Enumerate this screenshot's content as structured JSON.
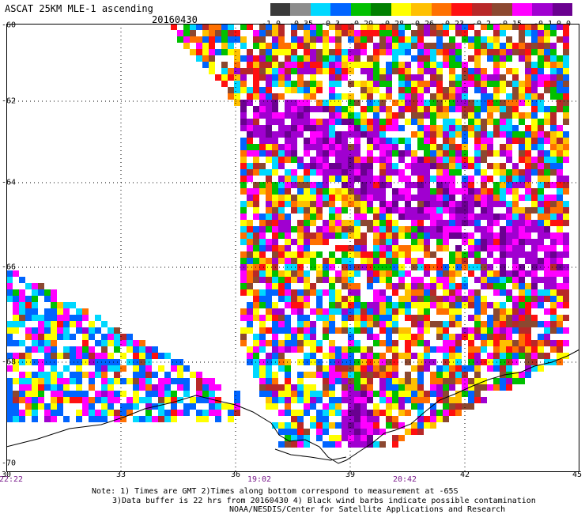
{
  "header": {
    "title": "ASCAT 25KM MLE-1 ascending",
    "date": "20160430"
  },
  "legend": {
    "colors": [
      "#3a3a3a",
      "#8c8c8c",
      "#00d8ff",
      "#0064ff",
      "#00c000",
      "#008000",
      "#ffff00",
      "#ffc000",
      "#ff7000",
      "#ff1010",
      "#b82828",
      "#8c4830",
      "#ff00ff",
      "#a000d0",
      "#6a0090"
    ],
    "labels": [
      "-1.0",
      "-0.35",
      "-0.3",
      "-0.29",
      "-0.28",
      "-0.26",
      "-0.23",
      "-0.2",
      "-0.15",
      "-0.1",
      "0.0"
    ]
  },
  "map": {
    "lon_ticks": [
      "30",
      "33",
      "36",
      "39",
      "42",
      "45"
    ],
    "lat_ticks": [
      "-60",
      "-62",
      "-64",
      "-66",
      "-68",
      "-70"
    ],
    "time_labels": [
      "22:22",
      "19:02",
      "20:42"
    ]
  },
  "notes": {
    "line1": "Note: 1) Times are GMT 2)Times along bottom correspond to measurement at -65S",
    "line2": "3)Data buffer is 22 hrs from 20160430 4) Black wind barbs indicate possible contamination",
    "line3": "NOAA/NESDIS/Center for Satellite Applications and Research"
  }
}
